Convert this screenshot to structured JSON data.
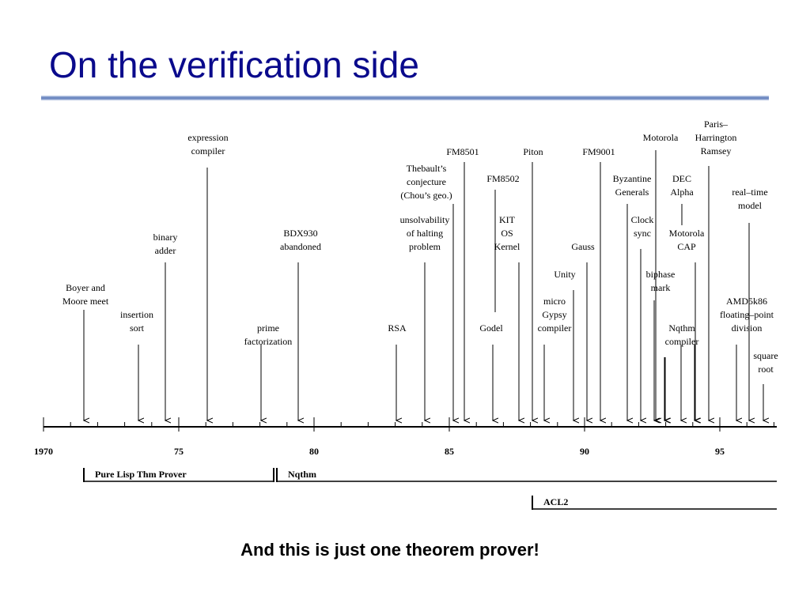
{
  "header": {
    "title": "On the verification side"
  },
  "timeline": {
    "ticks": [
      "1970",
      "75",
      "80",
      "85",
      "90",
      "95"
    ],
    "events": [
      {
        "lines": [
          "Boyer and",
          "Moore meet"
        ]
      },
      {
        "lines": [
          "insertion",
          "sort"
        ]
      },
      {
        "lines": [
          "binary",
          "adder"
        ]
      },
      {
        "lines": [
          "expression",
          "compiler"
        ]
      },
      {
        "lines": [
          "BDX930",
          "abandoned"
        ]
      },
      {
        "lines": [
          "prime",
          "factorization"
        ]
      },
      {
        "lines": [
          "RSA"
        ]
      },
      {
        "lines": [
          "unsolvability",
          "of halting",
          "problem"
        ]
      },
      {
        "lines": [
          "Thebault’s",
          "conjecture",
          "(Chou’s geo.)"
        ]
      },
      {
        "lines": [
          "FM8501"
        ]
      },
      {
        "lines": [
          "FM8502"
        ]
      },
      {
        "lines": [
          "KIT",
          "OS",
          "Kernel"
        ]
      },
      {
        "lines": [
          "Godel"
        ]
      },
      {
        "lines": [
          "Piton"
        ]
      },
      {
        "lines": [
          "micro",
          "Gypsy",
          "compiler"
        ]
      },
      {
        "lines": [
          "Unity"
        ]
      },
      {
        "lines": [
          "FM9001"
        ]
      },
      {
        "lines": [
          "Gauss"
        ]
      },
      {
        "lines": [
          "Byzantine",
          "Generals"
        ]
      },
      {
        "lines": [
          "Clock",
          "sync"
        ]
      },
      {
        "lines": [
          "Motorola"
        ]
      },
      {
        "lines": [
          "Paris–",
          "Harrington",
          "Ramsey"
        ]
      },
      {
        "lines": [
          "DEC",
          "Alpha"
        ]
      },
      {
        "lines": [
          "Motorola",
          "CAP"
        ]
      },
      {
        "lines": [
          "biphase",
          "mark"
        ]
      },
      {
        "lines": [
          "Nqthm",
          "compiler"
        ]
      },
      {
        "lines": [
          "real–time",
          "model"
        ]
      },
      {
        "lines": [
          "AMD5k86",
          "floating–point",
          "division"
        ]
      },
      {
        "lines": [
          "square",
          "root"
        ]
      }
    ],
    "provers": [
      "Pure Lisp Thm Prover",
      "Nqthm",
      "ACL2"
    ]
  },
  "footer": "And this is just one theorem prover!"
}
